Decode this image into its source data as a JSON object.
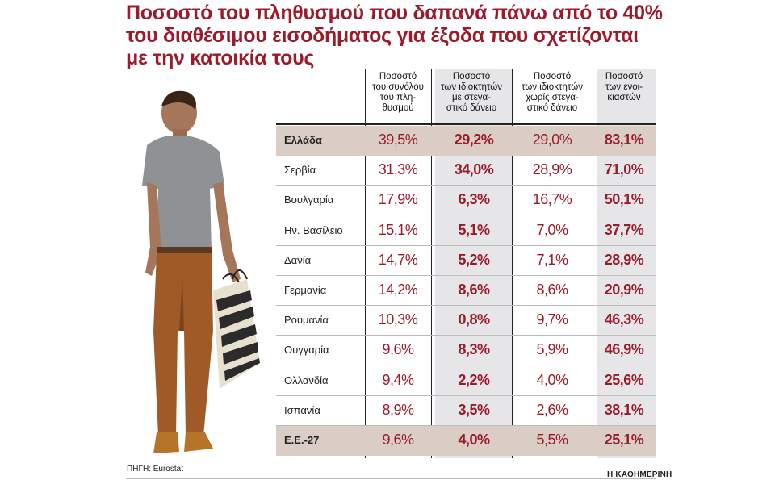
{
  "title_lines": [
    "Ποσοστό του πληθυσμού που δαπανά πάνω από το 40%",
    "του διαθέσιμου εισοδήματος για έξοδα που σχετίζονται",
    "με την κατοικία τους"
  ],
  "source": "ΠΗΓΗ: Eurostat",
  "brand": "Η ΚΑΘΗΜΕΡΙΝΗ",
  "colors": {
    "accent": "#9b1b2a",
    "highlight_row": "#d9cdc6",
    "shaded_column": "#e6e6e9"
  },
  "chart_data": {
    "type": "table",
    "columns": [
      "Ποσοστό του συνόλου του πλη-θυσμού",
      "Ποσοστό των ιδιοκτητών με στεγα-στικό δάνειο",
      "Ποσοστό των ιδιοκτητών χωρίς στεγα-στικό δάνειο",
      "Ποσοστό των ενοι-κιαστών"
    ],
    "column_header_lines": [
      [
        "Ποσοστό",
        "του συνόλου",
        "του πλη-",
        "θυσμού"
      ],
      [
        "Ποσοστό",
        "των ιδιοκτητών",
        "με στεγα-",
        "στικό δάνειο"
      ],
      [
        "Ποσοστό",
        "των ιδιοκτητών",
        "χωρίς στεγα-",
        "στικό δάνειο"
      ],
      [
        "Ποσοστό",
        "των ενοι-",
        "κιαστών"
      ]
    ],
    "rows": [
      {
        "country": "Ελλάδα",
        "values": [
          "39,5%",
          "29,2%",
          "29,0%",
          "83,1%"
        ],
        "highlight": true
      },
      {
        "country": "Σερβία",
        "values": [
          "31,3%",
          "34,0%",
          "28,9%",
          "71,0%"
        ]
      },
      {
        "country": "Βουλγαρία",
        "values": [
          "17,9%",
          "6,3%",
          "16,7%",
          "50,1%"
        ]
      },
      {
        "country": "Ην. Βασίλειο",
        "values": [
          "15,1%",
          "5,1%",
          "7,0%",
          "37,7%"
        ]
      },
      {
        "country": "Δανία",
        "values": [
          "14,7%",
          "5,2%",
          "7,1%",
          "28,9%"
        ]
      },
      {
        "country": "Γερμανία",
        "values": [
          "14,2%",
          "8,6%",
          "8,6%",
          "20,9%"
        ]
      },
      {
        "country": "Ρουμανία",
        "values": [
          "10,3%",
          "0,8%",
          "9,7%",
          "46,3%"
        ]
      },
      {
        "country": "Ουγγαρία",
        "values": [
          "9,6%",
          "8,3%",
          "5,9%",
          "46,9%"
        ]
      },
      {
        "country": "Ολλανδία",
        "values": [
          "9,4%",
          "2,2%",
          "4,0%",
          "25,6%"
        ]
      },
      {
        "country": "Ισπανία",
        "values": [
          "8,9%",
          "3,5%",
          "2,6%",
          "38,1%"
        ]
      },
      {
        "country": "Ε.Ε.-27",
        "values": [
          "9,6%",
          "4,0%",
          "5,5%",
          "25,1%"
        ],
        "highlight": true
      }
    ]
  }
}
